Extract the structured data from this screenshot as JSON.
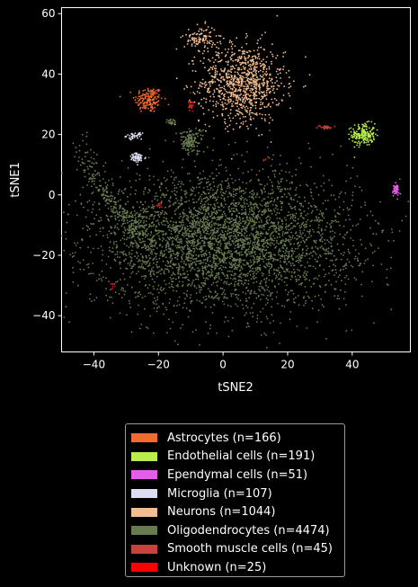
{
  "chart_data": {
    "type": "scatter",
    "title": "",
    "xlabel": "tSNE2",
    "ylabel": "tSNE1",
    "xlim": [
      -50,
      58
    ],
    "ylim": [
      -52,
      62
    ],
    "xticks": [
      -40,
      -20,
      0,
      20,
      40
    ],
    "yticks": [
      -40,
      -20,
      0,
      20,
      40,
      60
    ],
    "xtick_labels": [
      "−40",
      "−20",
      "0",
      "20",
      "40"
    ],
    "ytick_labels": [
      "−40",
      "−20",
      "0",
      "20",
      "40",
      "60"
    ],
    "grid": false,
    "legend_position": "below",
    "series": [
      {
        "name": "Astrocytes (n=166)",
        "color": "#f26a2e",
        "count": 166,
        "clusters": [
          {
            "cx": -23,
            "cy": 31.5,
            "sx": 2.2,
            "sy": 2.2,
            "n": 166
          }
        ]
      },
      {
        "name": "Endothelial cells (n=191)",
        "color": "#b8ef4a",
        "count": 191,
        "clusters": [
          {
            "cx": 43.5,
            "cy": 20,
            "sx": 1.8,
            "sy": 1.8,
            "n": 191
          }
        ]
      },
      {
        "name": "Ependymal cells (n=51)",
        "color": "#e35fe8",
        "count": 51,
        "clusters": [
          {
            "cx": 53.5,
            "cy": 1.5,
            "sx": 0.5,
            "sy": 1,
            "n": 51
          }
        ]
      },
      {
        "name": "Microglia (n=107)",
        "color": "#dcdcf2",
        "count": 107,
        "clusters": [
          {
            "cx": -27.5,
            "cy": 19.5,
            "sx": 1.2,
            "sy": 0.5,
            "n": 45
          },
          {
            "cx": -26.5,
            "cy": 12.2,
            "sx": 1.3,
            "sy": 0.8,
            "n": 62
          }
        ]
      },
      {
        "name": "Neurons (n=1044)",
        "color": "#f4bd8f",
        "count": 1044,
        "clusters": [
          {
            "cx": 6,
            "cy": 37,
            "sx": 6.5,
            "sy": 6.5,
            "n": 940
          },
          {
            "cx": -7,
            "cy": 52,
            "sx": 2.5,
            "sy": 2,
            "n": 104
          }
        ]
      },
      {
        "name": "Oligodendrocytes (n=4474)",
        "color": "#687a50",
        "count": 4474,
        "clusters": [
          {
            "cx": 0,
            "cy": -15,
            "sx": 20,
            "sy": 11,
            "n": 4000
          },
          {
            "cx": -10,
            "cy": 18,
            "sx": 1.8,
            "sy": 2,
            "n": 150
          },
          {
            "cx": -16,
            "cy": 24,
            "sx": 0.8,
            "sy": 0.5,
            "n": 24
          },
          {
            "arc": true,
            "n": 300
          }
        ]
      },
      {
        "name": "Smooth muscle cells (n=45)",
        "color": "#c9403d",
        "count": 45,
        "clusters": [
          {
            "cx": 32,
            "cy": 22.3,
            "sx": 1,
            "sy": 0.3,
            "n": 30
          },
          {
            "cx": -10,
            "cy": 29.5,
            "sx": 0.4,
            "sy": 0.6,
            "n": 15
          }
        ]
      },
      {
        "name": "Unknown (n=25)",
        "color": "#ff0000",
        "count": 25,
        "clusters": [
          {
            "cx": -10,
            "cy": 30,
            "sx": 0.4,
            "sy": 1,
            "n": 10
          },
          {
            "cx": -19.5,
            "cy": -4,
            "sx": 0.5,
            "sy": 0.5,
            "n": 5
          },
          {
            "cx": 13,
            "cy": 11.5,
            "sx": 0.3,
            "sy": 0.3,
            "n": 3
          },
          {
            "cx": -34,
            "cy": -30,
            "sx": 0.5,
            "sy": 0.5,
            "n": 7
          }
        ]
      }
    ]
  }
}
